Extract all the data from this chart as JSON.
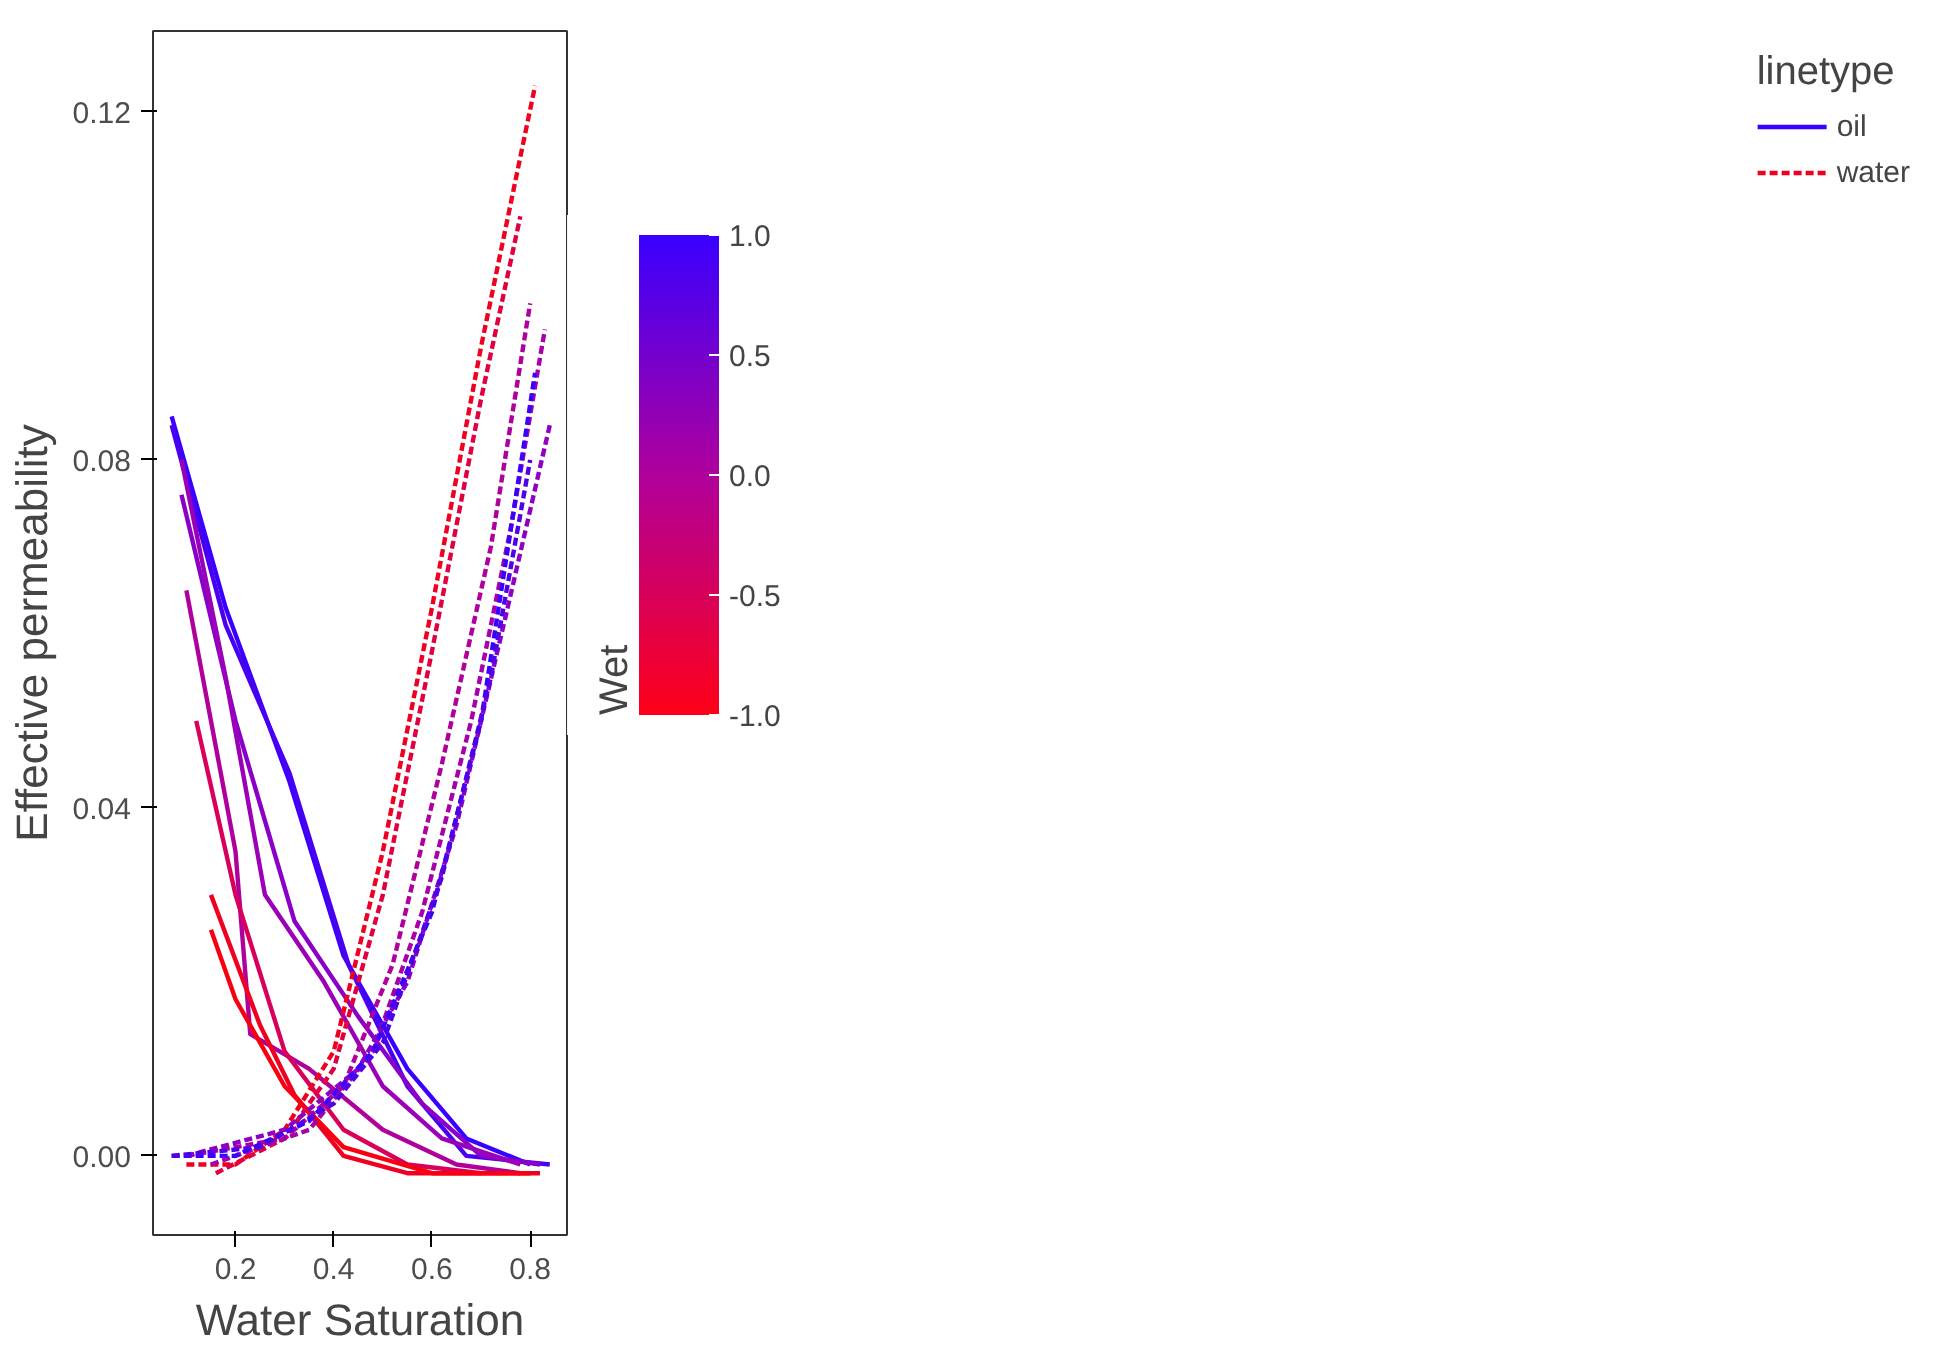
{
  "chart_data": {
    "type": "line",
    "xlabel": "Water Saturation",
    "ylabel": "Effective permeability",
    "clabel": "Wet",
    "legend_title": "linetype",
    "legend": "right",
    "grid": false,
    "xlim": [
      0.032,
      0.875
    ],
    "ylim": [
      -0.0091,
      0.1293
    ],
    "xticks": [
      0.2,
      0.4,
      0.6,
      0.8
    ],
    "yticks": [
      {
        "value": 0,
        "label": "0.00"
      },
      {
        "value": 0.04,
        "label": "0.04"
      },
      {
        "value": 0.08,
        "label": "0.08"
      },
      {
        "value": 0.12,
        "label": "0.12"
      }
    ],
    "clim": [
      -1,
      1
    ],
    "cticks": [
      {
        "value": -1,
        "label": "-1.0"
      },
      {
        "value": -0.5,
        "label": "-0.5"
      },
      {
        "value": 0,
        "label": "0.0"
      },
      {
        "value": 0.5,
        "label": "0.5"
      },
      {
        "value": 1,
        "label": "1.0"
      }
    ],
    "series": [
      {
        "name": "oil",
        "color": "#3a00ff",
        "line_style": "solid",
        "x": [
          0.07,
          0.18,
          0.31,
          0.42,
          0.55,
          0.67,
          0.8
        ],
        "values": [
          0.085,
          0.063,
          0.043,
          0.023,
          0.01,
          0.002,
          -0.001
        ]
      },
      {
        "color": "#4a00f0",
        "line_style": "solid",
        "x": [
          0.07,
          0.18,
          0.31,
          0.43,
          0.55,
          0.67,
          0.84
        ],
        "values": [
          0.084,
          0.061,
          0.044,
          0.022,
          0.008,
          0.0,
          -0.001
        ]
      },
      {
        "color": "#8a00c8",
        "line_style": "solid",
        "x": [
          0.09,
          0.2,
          0.32,
          0.45,
          0.58,
          0.7,
          0.82
        ],
        "values": [
          0.076,
          0.05,
          0.027,
          0.016,
          0.006,
          0.0,
          -0.001
        ]
      },
      {
        "color": "#9a00b8",
        "line_style": "solid",
        "x": [
          0.09,
          0.18,
          0.26,
          0.38,
          0.5,
          0.62,
          0.78
        ],
        "values": [
          0.08,
          0.055,
          0.03,
          0.02,
          0.008,
          0.002,
          -0.001
        ]
      },
      {
        "color": "#b0009c",
        "line_style": "solid",
        "x": [
          0.1,
          0.2,
          0.23,
          0.35,
          0.5,
          0.65,
          0.78
        ],
        "values": [
          0.065,
          0.035,
          0.014,
          0.01,
          0.003,
          -0.001,
          -0.002
        ]
      },
      {
        "color": "#d8005a",
        "line_style": "solid",
        "x": [
          0.12,
          0.2,
          0.3,
          0.42,
          0.55,
          0.7
        ],
        "values": [
          0.05,
          0.03,
          0.012,
          0.003,
          -0.001,
          -0.002
        ]
      },
      {
        "color": "#f00020",
        "line_style": "solid",
        "x": [
          0.15,
          0.25,
          0.32,
          0.42,
          0.55,
          0.7,
          0.82
        ],
        "values": [
          0.03,
          0.015,
          0.007,
          0.0,
          -0.002,
          -0.002,
          -0.002
        ]
      },
      {
        "color": "#f80010",
        "line_style": "solid",
        "x": [
          0.15,
          0.2,
          0.3,
          0.42,
          0.6,
          0.8
        ],
        "values": [
          0.026,
          0.018,
          0.008,
          0.001,
          -0.002,
          -0.002
        ]
      },
      {
        "name": "water",
        "color": "#f00020",
        "line_style": "dashed",
        "x": [
          0.1,
          0.2,
          0.3,
          0.4,
          0.5,
          0.6,
          0.7,
          0.81
        ],
        "values": [
          -0.001,
          -0.001,
          0.003,
          0.012,
          0.035,
          0.063,
          0.093,
          0.123
        ]
      },
      {
        "color": "#e00040",
        "line_style": "dashed",
        "x": [
          0.16,
          0.3,
          0.4,
          0.5,
          0.6,
          0.7,
          0.78
        ],
        "values": [
          -0.002,
          0.002,
          0.01,
          0.03,
          0.058,
          0.087,
          0.108
        ]
      },
      {
        "color": "#b0009c",
        "line_style": "dashed",
        "x": [
          0.1,
          0.3,
          0.42,
          0.52,
          0.62,
          0.72,
          0.8
        ],
        "values": [
          0.0,
          0.002,
          0.008,
          0.022,
          0.045,
          0.07,
          0.098
        ]
      },
      {
        "color": "#a800a8",
        "line_style": "dashed",
        "x": [
          0.15,
          0.35,
          0.48,
          0.58,
          0.68,
          0.76,
          0.83
        ],
        "values": [
          -0.001,
          0.003,
          0.012,
          0.028,
          0.05,
          0.072,
          0.095
        ]
      },
      {
        "color": "#9000c0",
        "line_style": "dashed",
        "x": [
          0.1,
          0.3,
          0.45,
          0.55,
          0.65,
          0.75,
          0.84
        ],
        "values": [
          0.0,
          0.003,
          0.01,
          0.02,
          0.038,
          0.062,
          0.084
        ]
      },
      {
        "color": "#3a00ff",
        "line_style": "dashed",
        "x": [
          0.07,
          0.2,
          0.35,
          0.48,
          0.6,
          0.7,
          0.81
        ],
        "values": [
          0.0,
          0.0,
          0.004,
          0.012,
          0.028,
          0.05,
          0.09
        ]
      },
      {
        "color": "#5000e8",
        "line_style": "dashed",
        "x": [
          0.07,
          0.25,
          0.4,
          0.5,
          0.62,
          0.72,
          0.8
        ],
        "values": [
          0.0,
          0.001,
          0.006,
          0.013,
          0.032,
          0.055,
          0.08
        ]
      }
    ]
  }
}
